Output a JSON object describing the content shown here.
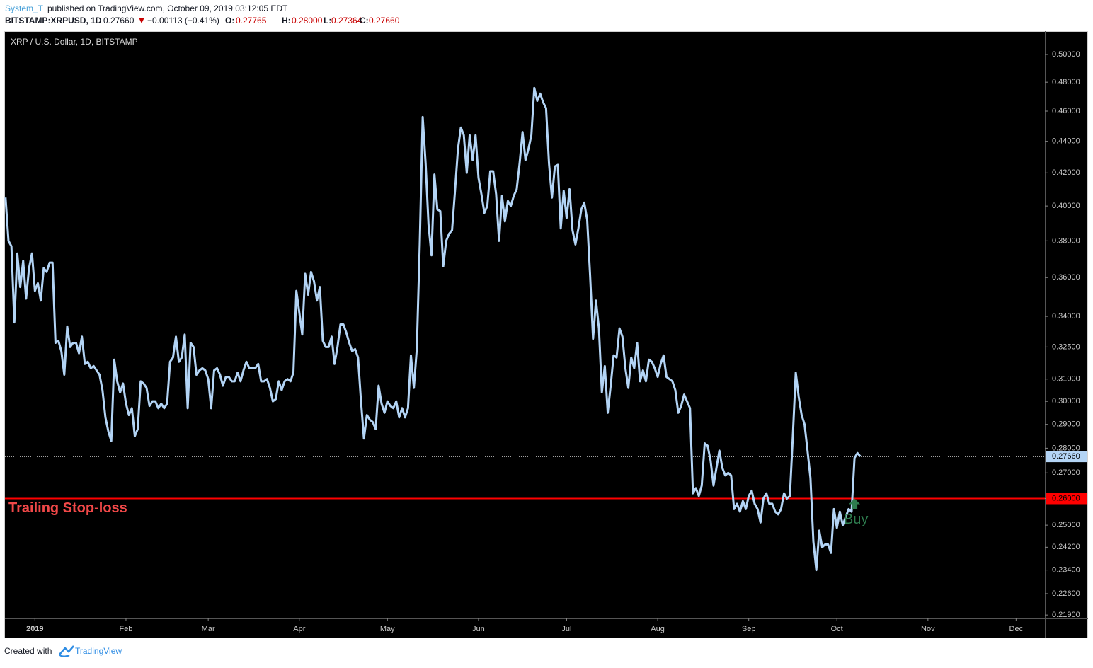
{
  "header": {
    "author": "System_T",
    "published": "published on TradingView.com, October 09, 2019 03:12:05 EDT",
    "symbol": "BITSTAMP:XRPUSD, 1D",
    "last": "0.27660",
    "change": "−0.00113 (−0.41%)",
    "ohlc": [
      {
        "label": "O:",
        "value": "0.27765"
      },
      {
        "label": "H:",
        "value": "0.28000"
      },
      {
        "label": "L:",
        "value": "0.27364"
      },
      {
        "label": "C:",
        "value": "0.27660"
      }
    ]
  },
  "chart_data": {
    "type": "line",
    "title": "XRP / U.S. Dollar, 1D, BITSTAMP",
    "color": "#b3d4f5",
    "log_scale": true,
    "grid": false,
    "x": [
      -10,
      -9,
      -8,
      -7,
      -6,
      -5,
      -4,
      -3,
      -2,
      -1,
      0,
      1,
      2,
      3,
      4,
      5,
      6,
      7,
      8,
      9,
      10,
      11,
      12,
      13,
      14,
      15,
      16,
      17,
      18,
      19,
      20,
      21,
      22,
      23,
      24,
      25,
      26,
      27,
      28,
      29,
      30,
      31,
      32,
      33,
      34,
      35,
      36,
      37,
      38,
      39,
      40,
      41,
      42,
      43,
      44,
      45,
      46,
      47,
      48,
      49,
      50,
      51,
      52,
      53,
      54,
      55,
      56,
      57,
      58,
      59,
      60,
      61,
      62,
      63,
      64,
      65,
      66,
      67,
      68,
      69,
      70,
      71,
      72,
      73,
      74,
      75,
      76,
      77,
      78,
      79,
      80,
      81,
      82,
      83,
      84,
      85,
      86,
      87,
      88,
      89,
      90,
      91,
      92,
      93,
      94,
      95,
      96,
      97,
      98,
      99,
      100,
      101,
      102,
      103,
      104,
      105,
      106,
      107,
      108,
      109,
      110,
      111,
      112,
      113,
      114,
      115,
      116,
      117,
      118,
      119,
      120,
      121,
      122,
      123,
      124,
      125,
      126,
      127,
      128,
      129,
      130,
      131,
      132,
      133,
      134,
      135,
      136,
      137,
      138,
      139,
      140,
      141,
      142,
      143,
      144,
      145,
      146,
      147,
      148,
      149,
      150,
      151,
      152,
      153,
      154,
      155,
      156,
      157,
      158,
      159,
      160,
      161,
      162,
      163,
      164,
      165,
      166,
      167,
      168,
      169,
      170,
      171,
      172,
      173,
      174,
      175,
      176,
      177,
      178,
      179,
      180,
      181,
      182,
      183,
      184,
      185,
      186,
      187,
      188,
      189,
      190,
      191,
      192,
      193,
      194,
      195,
      196,
      197,
      198,
      199,
      200,
      201,
      202,
      203,
      204,
      205,
      206,
      207,
      208,
      209,
      210,
      211,
      212,
      213,
      214,
      215,
      216,
      217,
      218,
      219,
      220,
      221,
      222,
      223,
      224,
      225,
      226,
      227,
      228,
      229,
      230,
      231,
      232,
      233,
      234,
      235,
      236,
      237,
      238,
      239,
      240,
      241,
      242,
      243,
      244,
      245,
      246,
      247,
      248,
      249,
      250,
      251,
      252,
      253,
      254,
      255,
      256,
      257,
      258,
      259,
      260,
      261,
      262,
      263,
      264,
      265,
      266,
      267,
      268,
      269,
      270,
      271,
      272,
      273,
      274,
      275,
      276,
      277,
      278,
      279,
      280,
      281
    ],
    "values": [
      0.405,
      0.38,
      0.377,
      0.337,
      0.373,
      0.355,
      0.369,
      0.349,
      0.365,
      0.373,
      0.353,
      0.357,
      0.348,
      0.365,
      0.363,
      0.368,
      0.368,
      0.327,
      0.328,
      0.323,
      0.312,
      0.335,
      0.325,
      0.327,
      0.327,
      0.322,
      0.33,
      0.317,
      0.318,
      0.315,
      0.316,
      0.314,
      0.312,
      0.305,
      0.293,
      0.287,
      0.283,
      0.319,
      0.309,
      0.304,
      0.308,
      0.299,
      0.294,
      0.297,
      0.285,
      0.288,
      0.309,
      0.308,
      0.306,
      0.298,
      0.3,
      0.3,
      0.297,
      0.299,
      0.297,
      0.299,
      0.318,
      0.32,
      0.33,
      0.318,
      0.32,
      0.331,
      0.297,
      0.327,
      0.325,
      0.312,
      0.314,
      0.315,
      0.314,
      0.31,
      0.297,
      0.314,
      0.315,
      0.312,
      0.307,
      0.311,
      0.311,
      0.309,
      0.309,
      0.313,
      0.309,
      0.314,
      0.318,
      0.315,
      0.315,
      0.315,
      0.317,
      0.309,
      0.309,
      0.31,
      0.306,
      0.3,
      0.301,
      0.309,
      0.305,
      0.309,
      0.31,
      0.309,
      0.313,
      0.353,
      0.342,
      0.331,
      0.362,
      0.351,
      0.363,
      0.358,
      0.348,
      0.355,
      0.328,
      0.325,
      0.325,
      0.33,
      0.317,
      0.325,
      0.336,
      0.336,
      0.332,
      0.327,
      0.323,
      0.324,
      0.32,
      0.3,
      0.284,
      0.294,
      0.292,
      0.291,
      0.288,
      0.307,
      0.299,
      0.295,
      0.3,
      0.298,
      0.297,
      0.3,
      0.293,
      0.297,
      0.293,
      0.297,
      0.321,
      0.306,
      0.324,
      0.378,
      0.456,
      0.426,
      0.389,
      0.372,
      0.419,
      0.398,
      0.397,
      0.366,
      0.38,
      0.384,
      0.386,
      0.409,
      0.435,
      0.449,
      0.444,
      0.42,
      0.444,
      0.428,
      0.444,
      0.417,
      0.407,
      0.396,
      0.4,
      0.421,
      0.421,
      0.407,
      0.38,
      0.406,
      0.391,
      0.403,
      0.4,
      0.406,
      0.41,
      0.426,
      0.446,
      0.428,
      0.435,
      0.444,
      0.476,
      0.467,
      0.472,
      0.466,
      0.462,
      0.426,
      0.405,
      0.424,
      0.425,
      0.387,
      0.409,
      0.393,
      0.41,
      0.386,
      0.378,
      0.387,
      0.398,
      0.402,
      0.392,
      0.361,
      0.329,
      0.348,
      0.334,
      0.304,
      0.316,
      0.295,
      0.307,
      0.321,
      0.32,
      0.334,
      0.33,
      0.315,
      0.306,
      0.32,
      0.315,
      0.327,
      0.309,
      0.314,
      0.309,
      0.319,
      0.318,
      0.315,
      0.311,
      0.317,
      0.321,
      0.311,
      0.31,
      0.309,
      0.305,
      0.295,
      0.298,
      0.303,
      0.3,
      0.297,
      0.262,
      0.264,
      0.261,
      0.265,
      0.282,
      0.281,
      0.275,
      0.265,
      0.272,
      0.279,
      0.272,
      0.269,
      0.27,
      0.269,
      0.256,
      0.258,
      0.255,
      0.259,
      0.256,
      0.261,
      0.263,
      0.258,
      0.256,
      0.251,
      0.26,
      0.262,
      0.258,
      0.258,
      0.255,
      0.254,
      0.256,
      0.262,
      0.26,
      0.261,
      0.285,
      0.313,
      0.302,
      0.294,
      0.29,
      0.279,
      0.268,
      0.244,
      0.234,
      0.248,
      0.242,
      0.243,
      0.243,
      0.24,
      0.256,
      0.249,
      0.255,
      0.25,
      0.253,
      0.256,
      0.255,
      0.276,
      0.278,
      0.2766
    ],
    "xlim": [
      -10.2,
      343.8
    ],
    "xticks": [
      {
        "value": 0,
        "label": "2019"
      },
      {
        "value": 31,
        "label": "Feb"
      },
      {
        "value": 59,
        "label": "Mar"
      },
      {
        "value": 90,
        "label": "Apr"
      },
      {
        "value": 120,
        "label": "May"
      },
      {
        "value": 151,
        "label": "Jun"
      },
      {
        "value": 181,
        "label": "Jul"
      },
      {
        "value": 212,
        "label": "Aug"
      },
      {
        "value": 243,
        "label": "Sep"
      },
      {
        "value": 273,
        "label": "Oct"
      },
      {
        "value": 304,
        "label": "Nov"
      },
      {
        "value": 334,
        "label": "Dec"
      }
    ],
    "ylim": [
      0.2179,
      0.5175
    ],
    "yticks": [
      {
        "value": 0.5,
        "label": "0.50000"
      },
      {
        "value": 0.48,
        "label": "0.48000"
      },
      {
        "value": 0.46,
        "label": "0.46000"
      },
      {
        "value": 0.44,
        "label": "0.44000"
      },
      {
        "value": 0.42,
        "label": "0.42000"
      },
      {
        "value": 0.4,
        "label": "0.40000"
      },
      {
        "value": 0.38,
        "label": "0.38000"
      },
      {
        "value": 0.36,
        "label": "0.36000"
      },
      {
        "value": 0.34,
        "label": "0.34000"
      },
      {
        "value": 0.325,
        "label": "0.32500"
      },
      {
        "value": 0.31,
        "label": "0.31000"
      },
      {
        "value": 0.3,
        "label": "0.30000"
      },
      {
        "value": 0.29,
        "label": "0.29000"
      },
      {
        "value": 0.28,
        "label": "0.28000"
      },
      {
        "value": 0.27,
        "label": "0.27000"
      },
      {
        "value": 0.26,
        "label": "0.26000"
      },
      {
        "value": 0.25,
        "label": "0.25000"
      },
      {
        "value": 0.242,
        "label": "0.24200"
      },
      {
        "value": 0.234,
        "label": "0.23400"
      },
      {
        "value": 0.226,
        "label": "0.22600"
      },
      {
        "value": 0.219,
        "label": "0.21900"
      }
    ],
    "last_value": {
      "value": 0.2766,
      "label": "0.27660"
    },
    "hlines": [
      {
        "value": 0.26,
        "label": "0.26000",
        "text": "Trailing Stop-loss",
        "color": "#ff0000"
      }
    ],
    "annotations": [
      {
        "text": "Buy",
        "x": 279,
        "y": 0.26,
        "color": "#2e7d4f"
      }
    ]
  },
  "footer": {
    "created": "Created with",
    "brand": "TradingView"
  }
}
